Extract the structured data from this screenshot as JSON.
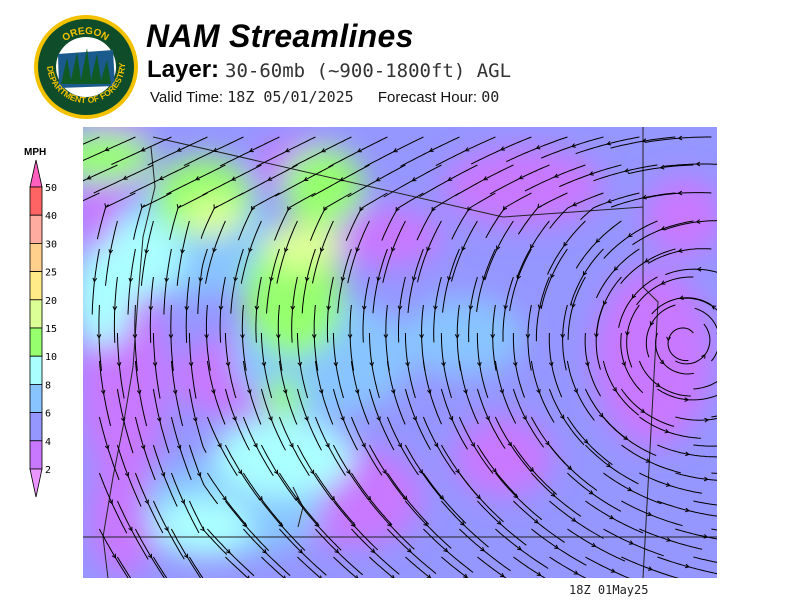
{
  "header": {
    "title": "NAM Streamlines",
    "layer_label": "Layer:",
    "layer_value": "30-60mb (~900-1800ft) AGL",
    "valid_label": "Valid Time:",
    "valid_value": "18Z 05/01/2025",
    "forecast_label": "Forecast Hour:",
    "forecast_value": "00"
  },
  "logo": {
    "text": "OREGON DEPARTMENT OF FORESTRY"
  },
  "legend": {
    "unit": "MPH",
    "ticks": [
      "50",
      "40",
      "30",
      "25",
      "20",
      "15",
      "10",
      "8",
      "6",
      "4",
      "2"
    ],
    "colors": [
      "#ff5fbf",
      "#ff6464",
      "#ffaca0",
      "#ffd08c",
      "#ffeb88",
      "#dcff96",
      "#96ff6e",
      "#aaffff",
      "#88c4ff",
      "#9696ff",
      "#c878ff",
      "#eb96ff"
    ]
  },
  "map": {
    "field": "streamlines",
    "colors": {
      "base": "#9696ff",
      "calm": "#c878ff",
      "light": "#88c4ff",
      "moderate": "#aaffff",
      "breezy": "#96ff6e",
      "windy": "#dcff96"
    }
  },
  "footer": {
    "timestamp": "18Z 01May25"
  }
}
